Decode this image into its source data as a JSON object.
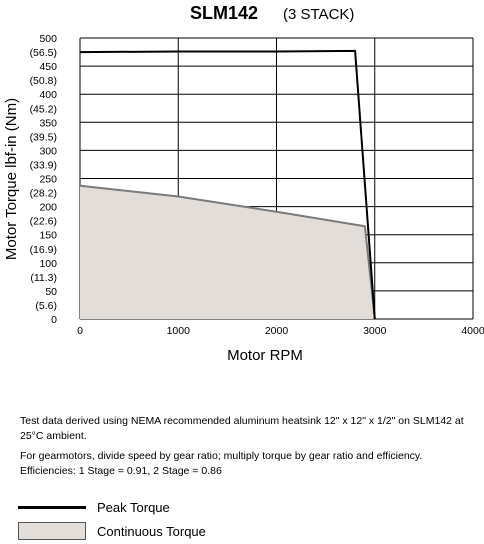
{
  "chart_data": {
    "type": "line",
    "title": "SLM142",
    "subtitle": "(3 STACK)",
    "xlabel": "Motor RPM",
    "ylabel": "Motor Torque lbf-in (Nm)",
    "xlim": [
      0,
      4000
    ],
    "ylim": [
      0,
      500
    ],
    "x_ticks": [
      "0",
      "1000",
      "2000",
      "3000",
      "4000"
    ],
    "y_ticks": [
      {
        "value": 500,
        "label": "500",
        "label2": "(56.5)"
      },
      {
        "value": 450,
        "label": "450",
        "label2": "(50.8)"
      },
      {
        "value": 400,
        "label": "400",
        "label2": "(45.2)"
      },
      {
        "value": 350,
        "label": "350",
        "label2": "(39.5)"
      },
      {
        "value": 300,
        "label": "300",
        "label2": "(33.9)"
      },
      {
        "value": 250,
        "label": "250",
        "label2": "(28.2)"
      },
      {
        "value": 200,
        "label": "200",
        "label2": "(22.6)"
      },
      {
        "value": 150,
        "label": "150",
        "label2": "(16.9)"
      },
      {
        "value": 100,
        "label": "100",
        "label2": "(11.3)"
      },
      {
        "value": 50,
        "label": "50",
        "label2": "(5.6)"
      },
      {
        "value": 0,
        "label": "0",
        "label2": ""
      }
    ],
    "grid": true,
    "legend_position": "bottom-left",
    "series": [
      {
        "name": "Peak Torque",
        "style": "line",
        "color": "#000000",
        "points": [
          [
            0,
            475
          ],
          [
            1000,
            476
          ],
          [
            2000,
            476
          ],
          [
            2800,
            477
          ],
          [
            3000,
            0
          ]
        ]
      },
      {
        "name": "Continuous Torque",
        "style": "area",
        "color": "#7a7a7a",
        "fill": "#e2ddd9",
        "points": [
          [
            0,
            237
          ],
          [
            1000,
            218
          ],
          [
            2000,
            191
          ],
          [
            2900,
            165
          ],
          [
            3000,
            0
          ]
        ]
      }
    ]
  },
  "notes": {
    "line1": "Test data derived using NEMA recommended aluminum heatsink 12\" x 12\" x 1/2\" on SLM142 at",
    "line2": "25°C ambient.",
    "line3": "For gearmotors, divide speed by gear ratio; multiply torque by gear ratio and efficiency.",
    "line4": "Efficiencies: 1 Stage = 0.91, 2 Stage = 0.86"
  },
  "legend": {
    "peak_label": "Peak Torque",
    "continuous_label": "Continuous Torque"
  }
}
